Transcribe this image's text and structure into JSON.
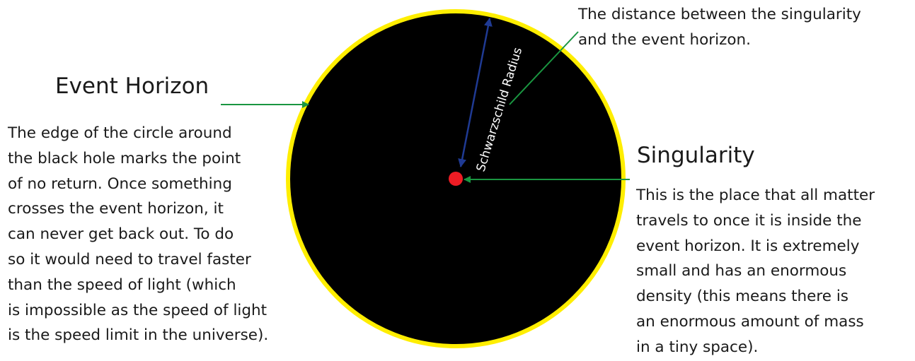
{
  "event_horizon": {
    "title": "Event Horizon",
    "description_lines": [
      "The edge of the circle around",
      "the black hole marks the point",
      "of no return.  Once something",
      "crosses the event horizon, it",
      "can never get back out.  To do",
      "so it would need to travel faster",
      "than the speed of light (which",
      "is impossible as the speed of light",
      "is the speed limit in the universe)."
    ]
  },
  "singularity": {
    "title": "Singularity",
    "description_lines": [
      "This is the place that all matter",
      "travels to once it is inside the",
      "event horizon.  It is extremely",
      "small and has an enormous",
      "density (this means there is",
      "an enormous amount of mass",
      "in a tiny space)."
    ]
  },
  "schwarzschild_radius": {
    "label": "Schwarzschild Radius",
    "description_lines": [
      "The distance between the singularity",
      "and the event horizon."
    ]
  },
  "colors": {
    "black_hole": "#000000",
    "event_horizon_ring": "#ffee00",
    "singularity_dot": "#ee1c24",
    "pointer_arrows": "#1a9641",
    "radius_arrow": "#1f3a93"
  }
}
